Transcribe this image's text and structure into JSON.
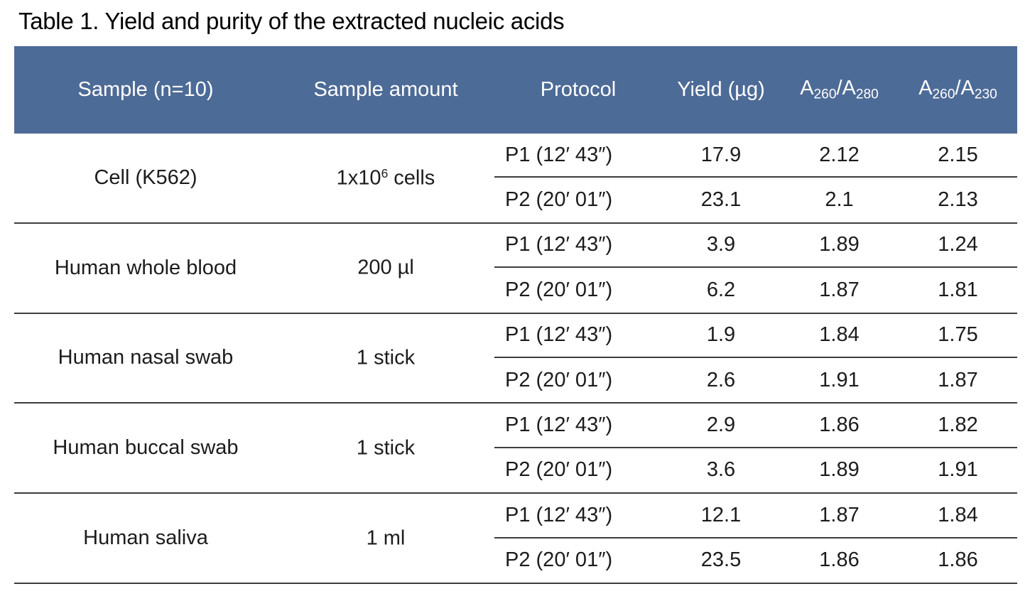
{
  "page": {
    "title": "Table 1. Yield and purity of the extracted nucleic acids"
  },
  "table": {
    "header": {
      "sample": "Sample (n=10)",
      "amount": "Sample amount",
      "protocol": "Protocol",
      "yield": "Yield (µg)",
      "ratio1": {
        "base1": "A",
        "sub1": "260",
        "base2": "/A",
        "sub2": "280"
      },
      "ratio2": {
        "base1": "A",
        "sub1": "260",
        "base2": "/A",
        "sub2": "230"
      }
    },
    "groups": [
      {
        "sample": "Cell (K562)",
        "amount": {
          "pre": "1x10",
          "sup": "6",
          "post": " cells"
        },
        "rows": [
          {
            "protocol": "P1 (12′ 43″)",
            "yield": "17.9",
            "ratio1": "2.12",
            "ratio2": "2.15"
          },
          {
            "protocol": "P2 (20′ 01″)",
            "yield": "23.1",
            "ratio1": "2.1",
            "ratio2": "2.13"
          }
        ]
      },
      {
        "sample": "Human whole blood",
        "amount": {
          "pre": "200 µl",
          "sup": "",
          "post": ""
        },
        "rows": [
          {
            "protocol": "P1 (12′ 43″)",
            "yield": "3.9",
            "ratio1": "1.89",
            "ratio2": "1.24"
          },
          {
            "protocol": "P2 (20′ 01″)",
            "yield": "6.2",
            "ratio1": "1.87",
            "ratio2": "1.81"
          }
        ]
      },
      {
        "sample": "Human nasal swab",
        "amount": {
          "pre": "1 stick",
          "sup": "",
          "post": ""
        },
        "rows": [
          {
            "protocol": "P1 (12′ 43″)",
            "yield": "1.9",
            "ratio1": "1.84",
            "ratio2": "1.75"
          },
          {
            "protocol": "P2 (20′ 01″)",
            "yield": "2.6",
            "ratio1": "1.91",
            "ratio2": "1.87"
          }
        ]
      },
      {
        "sample": "Human buccal swab",
        "amount": {
          "pre": "1 stick",
          "sup": "",
          "post": ""
        },
        "rows": [
          {
            "protocol": "P1 (12′ 43″)",
            "yield": "2.9",
            "ratio1": "1.86",
            "ratio2": "1.82"
          },
          {
            "protocol": "P2 (20′ 01″)",
            "yield": "3.6",
            "ratio1": "1.89",
            "ratio2": "1.91"
          }
        ]
      },
      {
        "sample": "Human saliva",
        "amount": {
          "pre": "1 ml",
          "sup": "",
          "post": ""
        },
        "rows": [
          {
            "protocol": "P1 (12′ 43″)",
            "yield": "12.1",
            "ratio1": "1.87",
            "ratio2": "1.84"
          },
          {
            "protocol": "P2 (20′ 01″)",
            "yield": "23.5",
            "ratio1": "1.86",
            "ratio2": "1.86"
          }
        ]
      }
    ]
  },
  "colors": {
    "background": "#ffffff",
    "header_bg": "#4d6b97",
    "header_text": "#ffffff",
    "body_text": "#1c1c1c",
    "divider": "#3d3d3d"
  }
}
